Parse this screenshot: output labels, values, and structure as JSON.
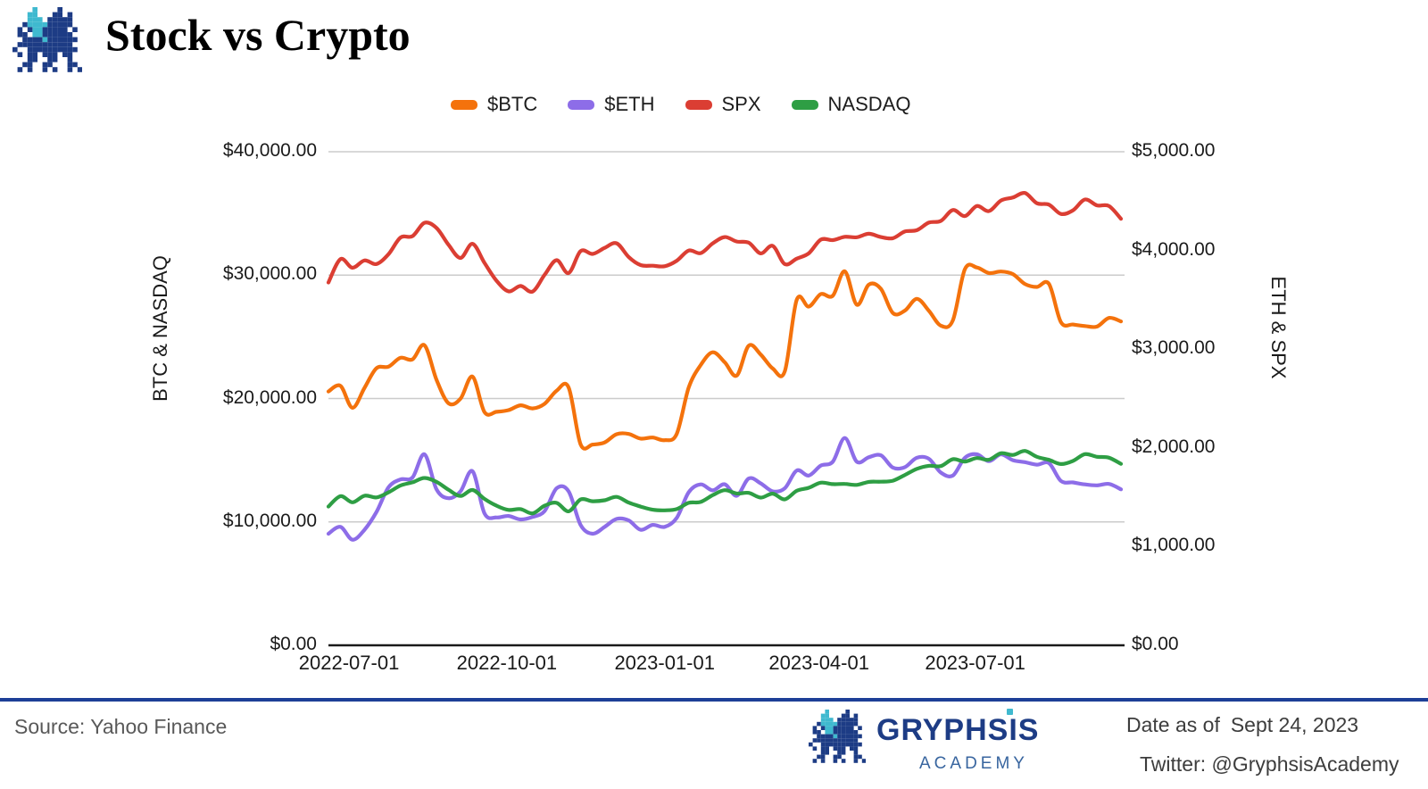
{
  "header": {
    "title": "Stock vs Crypto"
  },
  "chart_data": {
    "type": "line",
    "title": "Stock vs Crypto",
    "grid_color": "#cbcbcb",
    "axis_color": "#1a1a1a",
    "legend_position": "top-center",
    "left_axis": {
      "title": "BTC & NASDAQ",
      "range": [
        0,
        40000
      ],
      "ticks": [
        {
          "label": "$0.00",
          "value": 0
        },
        {
          "label": "$10,000.00",
          "value": 10000
        },
        {
          "label": "$20,000.00",
          "value": 20000
        },
        {
          "label": "$30,000.00",
          "value": 30000
        },
        {
          "label": "$40,000.00",
          "value": 40000
        }
      ]
    },
    "right_axis": {
      "title": "ETH & SPX",
      "range": [
        0,
        5000
      ],
      "ticks": [
        {
          "label": "$0.00",
          "value": 0
        },
        {
          "label": "$1,000.00",
          "value": 1000
        },
        {
          "label": "$2,000.00",
          "value": 2000
        },
        {
          "label": "$3,000.00",
          "value": 3000
        },
        {
          "label": "$4,000.00",
          "value": 4000
        },
        {
          "label": "$5,000.00",
          "value": 5000
        }
      ]
    },
    "x_ticks": [
      "2022-07-01",
      "2022-10-01",
      "2023-01-01",
      "2023-04-01",
      "2023-07-01"
    ],
    "x": [
      "2022-06-19",
      "2022-06-26",
      "2022-07-03",
      "2022-07-10",
      "2022-07-17",
      "2022-07-24",
      "2022-07-31",
      "2022-08-07",
      "2022-08-14",
      "2022-08-21",
      "2022-08-28",
      "2022-09-04",
      "2022-09-11",
      "2022-09-18",
      "2022-09-25",
      "2022-10-02",
      "2022-10-09",
      "2022-10-16",
      "2022-10-23",
      "2022-10-30",
      "2022-11-06",
      "2022-11-13",
      "2022-11-20",
      "2022-11-27",
      "2022-12-04",
      "2022-12-11",
      "2022-12-18",
      "2022-12-25",
      "2023-01-01",
      "2023-01-08",
      "2023-01-15",
      "2023-01-22",
      "2023-01-29",
      "2023-02-05",
      "2023-02-12",
      "2023-02-19",
      "2023-02-26",
      "2023-03-05",
      "2023-03-12",
      "2023-03-19",
      "2023-03-26",
      "2023-04-02",
      "2023-04-09",
      "2023-04-16",
      "2023-04-23",
      "2023-04-30",
      "2023-05-07",
      "2023-05-14",
      "2023-05-21",
      "2023-05-28",
      "2023-06-04",
      "2023-06-11",
      "2023-06-18",
      "2023-06-25",
      "2023-07-02",
      "2023-07-09",
      "2023-07-16",
      "2023-07-23",
      "2023-07-30",
      "2023-08-06",
      "2023-08-13",
      "2023-08-20",
      "2023-08-27",
      "2023-09-03",
      "2023-09-10",
      "2023-09-17",
      "2023-09-24"
    ],
    "series": [
      {
        "name": "$BTC",
        "axis": "left",
        "color": "#F4720C",
        "values": [
          20570,
          21030,
          19250,
          20860,
          22450,
          22580,
          23300,
          23175,
          24320,
          21515,
          19615,
          19990,
          21770,
          18890,
          18920,
          19060,
          19450,
          19200,
          19570,
          20630,
          20900,
          16290,
          16270,
          16440,
          17110,
          17130,
          16750,
          16840,
          16620,
          17130,
          20880,
          22710,
          23750,
          22940,
          21860,
          24280,
          23560,
          22430,
          22200,
          28000,
          27450,
          28460,
          28330,
          30310,
          27600,
          29230,
          28900,
          26930,
          27120,
          28080,
          27120,
          25900,
          26330,
          30480,
          30620,
          30170,
          30290,
          30080,
          29280,
          29040,
          29290,
          26190,
          26000,
          25870,
          25830,
          26530,
          26250
        ]
      },
      {
        "name": "$ETH",
        "axis": "right",
        "color": "#8D6DE8",
        "values": [
          1130,
          1200,
          1070,
          1170,
          1350,
          1600,
          1680,
          1700,
          1935,
          1580,
          1490,
          1560,
          1763,
          1335,
          1295,
          1310,
          1275,
          1300,
          1360,
          1590,
          1560,
          1220,
          1130,
          1200,
          1280,
          1265,
          1170,
          1220,
          1200,
          1290,
          1550,
          1630,
          1570,
          1631,
          1515,
          1690,
          1640,
          1560,
          1590,
          1770,
          1720,
          1820,
          1860,
          2100,
          1860,
          1905,
          1925,
          1800,
          1805,
          1900,
          1890,
          1750,
          1720,
          1900,
          1935,
          1865,
          1935,
          1875,
          1855,
          1830,
          1845,
          1665,
          1650,
          1630,
          1620,
          1635,
          1580
        ]
      },
      {
        "name": "SPX",
        "axis": "right",
        "color": "#DB3E33",
        "values": [
          3675,
          3912,
          3825,
          3899,
          3863,
          3962,
          4130,
          4145,
          4280,
          4228,
          4058,
          3924,
          4067,
          3873,
          3693,
          3586,
          3640,
          3583,
          3753,
          3901,
          3771,
          3993,
          3965,
          4026,
          4072,
          3934,
          3852,
          3845,
          3840,
          3895,
          3999,
          3973,
          4071,
          4136,
          4090,
          4079,
          3970,
          4046,
          3862,
          3917,
          3971,
          4109,
          4105,
          4138,
          4134,
          4169,
          4136,
          4124,
          4192,
          4205,
          4282,
          4299,
          4410,
          4348,
          4450,
          4399,
          4505,
          4536,
          4582,
          4478,
          4464,
          4370,
          4406,
          4516,
          4457,
          4450,
          4320
        ]
      },
      {
        "name": "NASDAQ",
        "axis": "left",
        "color": "#2E9E44",
        "values": [
          11244,
          12087,
          11586,
          12126,
          11984,
          12397,
          12948,
          13207,
          13566,
          13243,
          12605,
          12098,
          12588,
          11861,
          11311,
          10971,
          11039,
          10692,
          11310,
          11546,
          10857,
          11817,
          11677,
          11756,
          12030,
          11564,
          11244,
          10985,
          10940,
          11040,
          11541,
          11619,
          12166,
          12573,
          12304,
          12358,
          11969,
          12290,
          11830,
          12520,
          12767,
          13181,
          13062,
          13079,
          13001,
          13246,
          13259,
          13340,
          13803,
          14298,
          14547,
          14528,
          15083,
          14891,
          15179,
          15036,
          15565,
          15426,
          15751,
          15274,
          15028,
          14694,
          14942,
          15491,
          15280,
          15202,
          14702
        ]
      }
    ]
  },
  "footer": {
    "source": "Source: Yahoo Finance",
    "brand_name": "GRYPHSIS",
    "brand_sub": "ACADEMY",
    "date_label": "Date as of",
    "date_value": "Sept 24, 2023",
    "twitter": "Twitter: @GryphsisAcademy"
  },
  "brand_colors": {
    "navy": "#1d3c85",
    "teal": "#3fb9cf",
    "rule": "#1d3f97"
  }
}
